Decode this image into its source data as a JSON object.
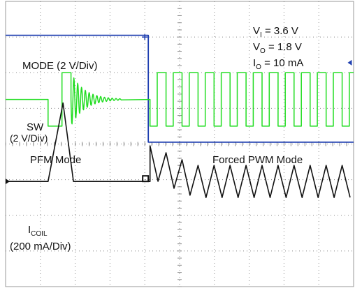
{
  "chart_data": {
    "type": "line",
    "title": "",
    "grid": true,
    "grid_divisions": {
      "x": 10,
      "y": 8
    },
    "conditions": [
      {
        "symbol": "V",
        "subscript": "I",
        "value": "= 3.6 V"
      },
      {
        "symbol": "V",
        "subscript": "O",
        "value": "= 1.8 V"
      },
      {
        "symbol": "I",
        "subscript": "O",
        "value": "= 10 mA"
      }
    ],
    "mode_labels": [
      "PFM Mode",
      "Forced PWM Mode"
    ],
    "series": [
      {
        "name": "MODE (2 V/Div)",
        "color": "#1f3fb0",
        "waveform": "step",
        "x": [
          0,
          4.1,
          4.1,
          10
        ],
        "y": [
          0.95,
          0.95,
          3.95,
          3.95
        ]
      },
      {
        "name": "SW",
        "scale": "(2 V/Div)",
        "color": "#22dd22",
        "waveform": "switching",
        "pfm_burst": [
          1.22,
          1.88
        ],
        "ringing_until": 3.35,
        "pwm_start": 4.15,
        "pwm_period": 0.46,
        "duty": 0.45,
        "high": 3.5,
        "low": 2.0,
        "mid": 2.75
      },
      {
        "name": "I",
        "subscript": "COIL",
        "scale": "(200 mA/Div)",
        "color": "#111111",
        "waveform": "inductor",
        "baseline": 5.05,
        "pfm_peak": {
          "x": 1.65,
          "y": 2.85
        },
        "pfm_span": [
          1.22,
          1.95
        ],
        "pwm_start": 4.15,
        "pwm_period": 0.46,
        "pwm_amplitude": 0.9
      }
    ]
  }
}
